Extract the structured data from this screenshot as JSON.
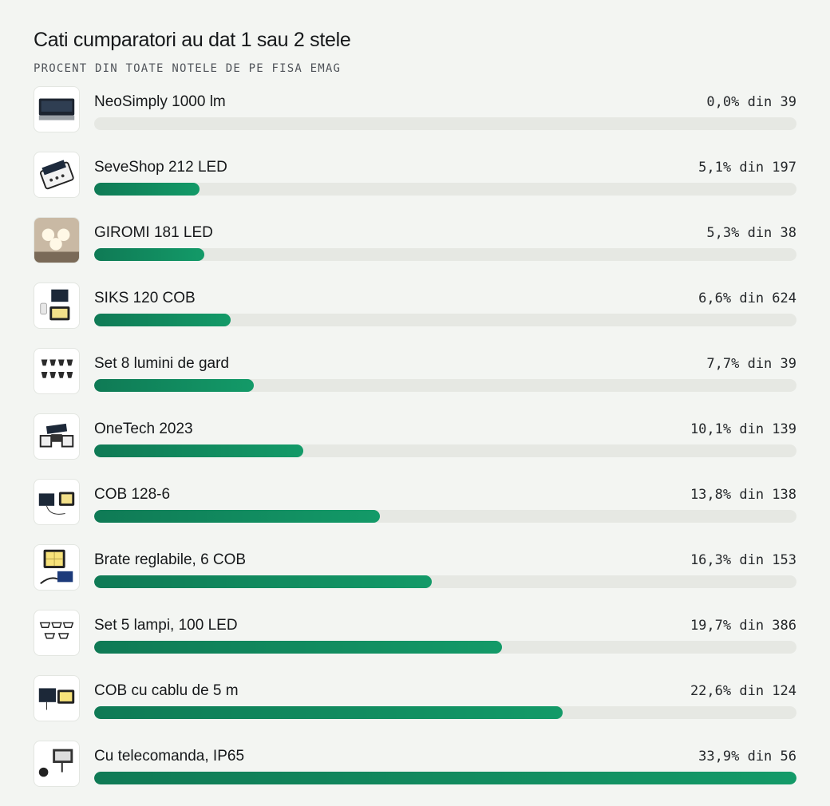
{
  "header": {
    "title": "Cati cumparatori au dat 1 sau 2 stele",
    "subtitle": "PROCENT DIN TOATE NOTELE DE PE FISA EMAG"
  },
  "colors": {
    "bar": "#119067",
    "track": "#e6e8e3",
    "background": "#f3f5f2"
  },
  "chart_data": {
    "type": "bar",
    "orientation": "horizontal",
    "title": "Cati cumparatori au dat 1 sau 2 stele",
    "subtitle": "PROCENT DIN TOATE NOTELE DE PE FISA EMAG",
    "xlim": [
      0,
      33.9
    ],
    "grid": false,
    "categories": [
      "NeoSimply 1000 lm",
      "SeveShop 212 LED",
      "GIROMI 181 LED",
      "SIKS 120 COB",
      "Set 8 lumini de gard",
      "OneTech 2023",
      "COB 128-6",
      "Brate reglabile, 6 COB",
      "Set 5 lampi, 100 LED",
      "COB cu cablu de 5 m",
      "Cu telecomanda, IP65"
    ],
    "values": [
      0.0,
      5.1,
      5.3,
      6.6,
      7.7,
      10.1,
      13.8,
      16.3,
      19.7,
      22.6,
      33.9
    ],
    "labels": [
      "0,0% din 39",
      "5,1% din 197",
      "5,3% din 38",
      "6,6% din 624",
      "7,7% din 39",
      "10,1% din 139",
      "13,8% din 138",
      "16,3% din 153",
      "19,7% din 386",
      "22,6% din 124",
      "33,9% din 56"
    ],
    "thumbnails": [
      "solar-wall-lamp-image",
      "solar-motion-light-image",
      "triple-head-light-image",
      "solar-panel-cob-image",
      "fence-lights-set-image",
      "solar-spotlight-image",
      "cob-panel-kit-image",
      "adjustable-arms-cob-image",
      "lamp-set-image",
      "cob-cable-light-image",
      "remote-light-image"
    ]
  }
}
